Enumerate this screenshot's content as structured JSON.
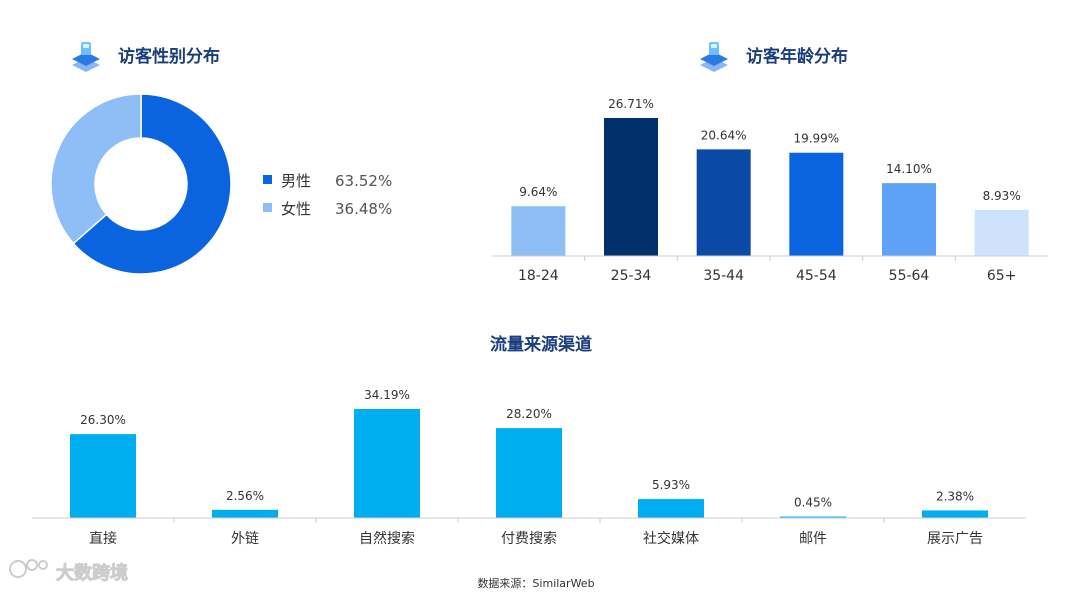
{
  "colors": {
    "title": "#1a3d7c",
    "icon_main": "#2c7be5",
    "icon_light": "#6ec1ff",
    "axis": "#cccccc",
    "traffic_bar": "#00aeef",
    "label": "#333333"
  },
  "footer": {
    "source": "数据来源：SimilarWeb"
  },
  "watermark": {
    "text": "大数跨境",
    "logo_icon": "brand-logo-icon"
  },
  "chart_data": [
    {
      "type": "pie",
      "title": "访客性别分布",
      "title_icon": "stacked-layers-icon",
      "donut": true,
      "categories": [
        "男性",
        "女性"
      ],
      "values": [
        63.52,
        36.48
      ],
      "value_labels": [
        "63.52%",
        "36.48%"
      ],
      "colors": [
        "#0a64e0",
        "#8fbef7"
      ],
      "legend_position": "right"
    },
    {
      "type": "bar",
      "title": "访客年龄分布",
      "title_icon": "stacked-layers-icon",
      "categories": [
        "18-24",
        "25-34",
        "35-44",
        "45-54",
        "55-64",
        "65+"
      ],
      "values": [
        9.64,
        26.71,
        20.64,
        19.99,
        14.1,
        8.93
      ],
      "value_labels": [
        "9.64%",
        "26.71%",
        "20.64%",
        "19.99%",
        "14.10%",
        "8.93%"
      ],
      "colors": [
        "#8fbef7",
        "#02306b",
        "#0a4aa6",
        "#0a64e0",
        "#5ea2f7",
        "#cfe2fc"
      ],
      "ylim": [
        0,
        26.71
      ],
      "grid": false,
      "xlabel": "",
      "ylabel": ""
    },
    {
      "type": "bar",
      "title": "流量来源渠道",
      "categories": [
        "直接",
        "外链",
        "自然搜索",
        "付费搜索",
        "社交媒体",
        "邮件",
        "展示广告"
      ],
      "values": [
        26.3,
        2.56,
        34.19,
        28.2,
        5.93,
        0.45,
        2.38
      ],
      "value_labels": [
        "26.30%",
        "2.56%",
        "34.19%",
        "28.20%",
        "5.93%",
        "0.45%",
        "2.38%"
      ],
      "ylim": [
        0,
        34.19
      ],
      "grid": false,
      "xlabel": "",
      "ylabel": ""
    }
  ]
}
